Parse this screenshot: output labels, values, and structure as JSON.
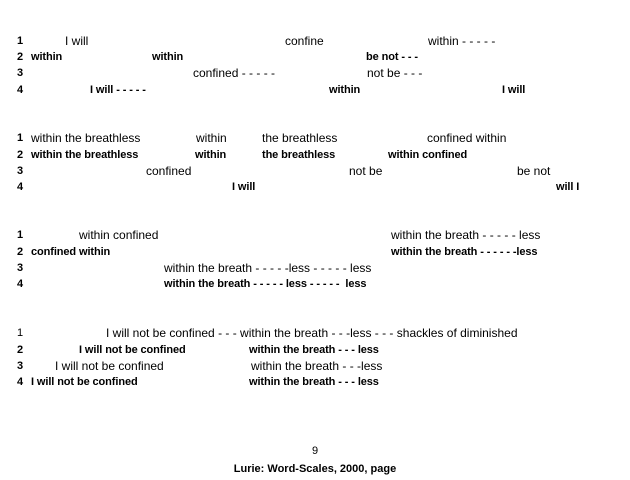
{
  "stanzas": [
    {
      "lines": [
        {
          "num": "1",
          "bold": false,
          "segments": [
            "I will",
            "confine",
            "within - - - - -"
          ]
        },
        {
          "num": "2",
          "bold": true,
          "segments": [
            "within",
            "within",
            "be not - - -"
          ]
        },
        {
          "num": "3",
          "bold": false,
          "segments": [
            "confined - - - - -",
            "not be - - -"
          ]
        },
        {
          "num": "4",
          "bold": true,
          "segments": [
            "I will - - - - -",
            "within",
            "I will"
          ]
        }
      ]
    },
    {
      "lines": [
        {
          "num": "1",
          "bold": false,
          "segments": [
            "within the breathless",
            "within",
            "the breathless",
            "confined within"
          ]
        },
        {
          "num": "2",
          "bold": true,
          "segments": [
            "within the breathless",
            "within",
            "the breathless",
            "within confined"
          ]
        },
        {
          "num": "3",
          "bold": false,
          "segments": [
            "confined",
            "not be",
            "be not"
          ]
        },
        {
          "num": "4",
          "bold": true,
          "segments": [
            "I will",
            "will I"
          ]
        }
      ]
    },
    {
      "lines": [
        {
          "num": "1",
          "bold": false,
          "segments": [
            "within confined",
            "within the breath - - - - - less"
          ]
        },
        {
          "num": "2",
          "bold": true,
          "segments": [
            "confined within",
            "within the breath - - - - - -less"
          ]
        },
        {
          "num": "3",
          "bold": false,
          "segments": [
            "within the breath - - - - -less - - - - - less"
          ]
        },
        {
          "num": "4",
          "bold": true,
          "segments": [
            "within the breath - - - - - less - - - - -  less"
          ]
        }
      ]
    },
    {
      "lines": [
        {
          "num": "1",
          "bold": false,
          "segments": [
            "I will not be confined - - - within the breath - - -less - - - shackles of diminished"
          ]
        },
        {
          "num": "2",
          "bold": true,
          "segments": [
            "I will not be confined",
            "within the breath - - - less"
          ]
        },
        {
          "num": "3",
          "bold": false,
          "segments": [
            "I will not be confined",
            "within the breath - - -less"
          ]
        },
        {
          "num": "4",
          "bold": true,
          "segments": [
            "I will not be confined",
            "within the breath - - - less"
          ]
        }
      ]
    }
  ],
  "page_number": "9",
  "caption": "Lurie: Word-Scales, 2000, page"
}
